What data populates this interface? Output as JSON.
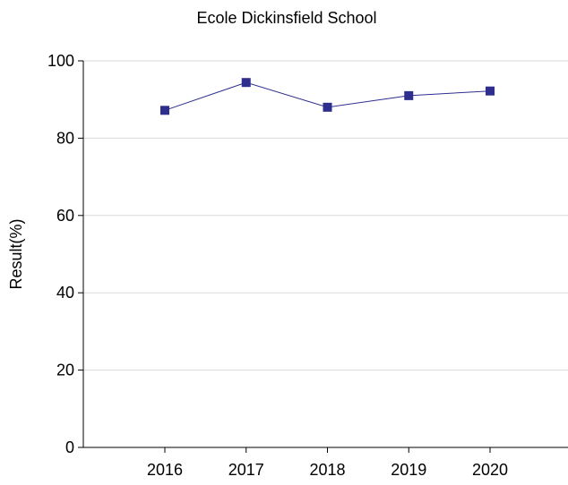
{
  "colors": {
    "series": "#2e2e8f",
    "grid": "#d9d9d9",
    "axis": "#000000"
  },
  "chart_data": {
    "type": "line",
    "title": "Ecole Dickinsfield School",
    "xlabel": "",
    "ylabel": "Result(%)",
    "categories": [
      "2016",
      "2017",
      "2018",
      "2019",
      "2020"
    ],
    "series": [
      {
        "values": [
          87.2,
          94.4,
          88.0,
          91.0,
          92.2
        ],
        "marker": "square"
      }
    ],
    "ylim": [
      0,
      100
    ],
    "yticks": [
      0,
      20,
      40,
      60,
      80,
      100
    ],
    "grid": true,
    "legend": "none"
  }
}
